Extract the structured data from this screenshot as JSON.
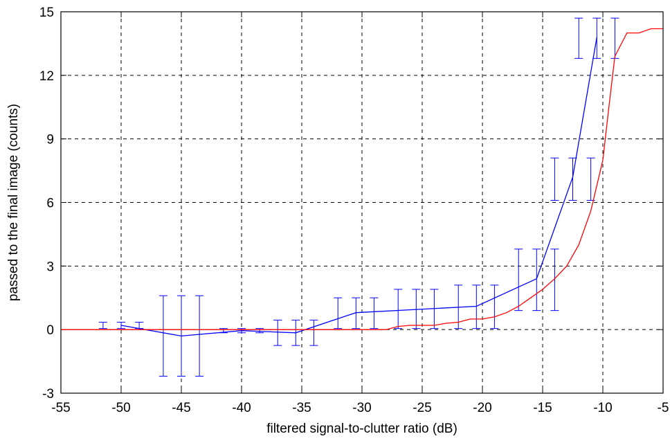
{
  "chart_data": {
    "type": "line",
    "title": "",
    "xlabel": "filtered signal-to-clutter ratio (dB)",
    "ylabel": "passed to the final image (counts)",
    "xlim": [
      -55,
      -5
    ],
    "ylim": [
      -3,
      15
    ],
    "xticks": [
      -55,
      -50,
      -45,
      -40,
      -35,
      -30,
      -25,
      -20,
      -15,
      -10,
      -5
    ],
    "yticks": [
      -3,
      0,
      3,
      6,
      9,
      12,
      15
    ],
    "grid": true,
    "series": [
      {
        "color": "#0000ff",
        "x": [
          -50,
          -45,
          -40,
          -35.5,
          -30.5,
          -25.5,
          -20.5,
          -15.5,
          -12.5,
          -10.5
        ],
        "y": [
          0.2,
          -0.3,
          -0.05,
          -0.15,
          0.8,
          0.95,
          1.1,
          2.4,
          7.2,
          13.8
        ],
        "error_bars": [
          {
            "x": -50,
            "low": 0.05,
            "high": 0.35,
            "offset": 1.5
          },
          {
            "x": -45,
            "low": -2.2,
            "high": 1.6,
            "offset": 1.5
          },
          {
            "x": -40,
            "low": -0.15,
            "high": 0.05,
            "offset": 1.5
          },
          {
            "x": -35.5,
            "low": -0.75,
            "high": 0.45,
            "offset": 1.5
          },
          {
            "x": -30.5,
            "low": 0.05,
            "high": 1.5,
            "offset": 1.5
          },
          {
            "x": -25.5,
            "low": 0.05,
            "high": 1.9,
            "offset": 1.5
          },
          {
            "x": -20.5,
            "low": 0.05,
            "high": 2.1,
            "offset": 1.5
          },
          {
            "x": -15.5,
            "low": 0.9,
            "high": 3.8,
            "offset": 1.5
          },
          {
            "x": -12.5,
            "low": 6.1,
            "high": 8.1,
            "offset": 1.5
          },
          {
            "x": -10.5,
            "low": 12.8,
            "high": 14.7,
            "offset": 1.5
          }
        ]
      },
      {
        "color": "#ff0000",
        "x": [
          -55,
          -28,
          -27,
          -26,
          -25,
          -24,
          -23,
          -22,
          -21,
          -20,
          -19,
          -18,
          -17,
          -16,
          -15,
          -14,
          -13,
          -12,
          -11,
          -10,
          -9.5,
          -9,
          -8,
          -7,
          -6,
          -5
        ],
        "y": [
          0,
          0,
          0.15,
          0.2,
          0.2,
          0.2,
          0.3,
          0.35,
          0.5,
          0.5,
          0.6,
          0.8,
          1.1,
          1.5,
          1.9,
          2.4,
          3.0,
          4.0,
          5.6,
          8.0,
          10.5,
          12.9,
          14.0,
          14.0,
          14.2,
          14.2
        ]
      }
    ]
  }
}
